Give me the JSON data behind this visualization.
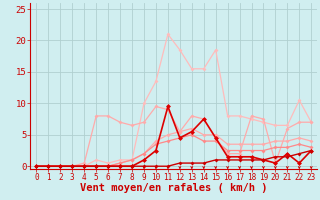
{
  "x": [
    0,
    1,
    2,
    3,
    4,
    5,
    6,
    7,
    8,
    9,
    10,
    11,
    12,
    13,
    14,
    15,
    16,
    17,
    18,
    19,
    20,
    21,
    22,
    23
  ],
  "bg_color": "#d0eef0",
  "grid_color": "#b0d0d0",
  "line_lightest": {
    "y": [
      0,
      0,
      0,
      0,
      0,
      1,
      0.5,
      1,
      1,
      10,
      13.5,
      21,
      18.5,
      15.5,
      15.5,
      18.5,
      8,
      8,
      7.5,
      7,
      6.5,
      6.5,
      10.5,
      7
    ],
    "color": "#ffbbbb",
    "lw": 0.9,
    "marker": "D",
    "ms": 2.0
  },
  "line_light": {
    "y": [
      0,
      0,
      0,
      0,
      0.5,
      8,
      8,
      7,
      6.5,
      7,
      9.5,
      9,
      5.5,
      8,
      7.5,
      4.5,
      2,
      2,
      8,
      7.5,
      0.5,
      6,
      7,
      7
    ],
    "color": "#ffaaaa",
    "lw": 0.9,
    "marker": "D",
    "ms": 2.0
  },
  "line_diag1": {
    "y": [
      0,
      0,
      0,
      0,
      0,
      0,
      0,
      0.5,
      1,
      2,
      3.5,
      4,
      4.5,
      5,
      4,
      4,
      2.5,
      2.5,
      2.5,
      2.5,
      3,
      3,
      3.5,
      3
    ],
    "color": "#ff8888",
    "lw": 0.9,
    "marker": "D",
    "ms": 2.0
  },
  "line_diag2": {
    "y": [
      0,
      0,
      0,
      0,
      0,
      0,
      0,
      0.5,
      1,
      2,
      4,
      5,
      5.5,
      6,
      5,
      5,
      3.5,
      3.5,
      3.5,
      3.5,
      4,
      4,
      4.5,
      4
    ],
    "color": "#ffaaaa",
    "lw": 0.9,
    "marker": "D",
    "ms": 2.0
  },
  "line_dark": {
    "y": [
      0,
      0,
      0,
      0,
      0,
      0,
      0,
      0,
      0,
      1,
      2.5,
      9.5,
      4.5,
      5.5,
      7.5,
      4.5,
      1.5,
      1.5,
      1.5,
      1,
      0.5,
      2,
      0.5,
      2.5
    ],
    "color": "#dd0000",
    "lw": 1.2,
    "marker": "D",
    "ms": 2.5
  },
  "line_base": {
    "y": [
      0,
      0,
      0,
      0,
      0,
      0,
      0,
      0,
      0,
      0,
      0,
      0,
      0.5,
      0.5,
      0.5,
      1,
      1,
      1,
      1,
      1,
      1.5,
      1.5,
      2,
      2.5
    ],
    "color": "#cc0000",
    "lw": 1.0,
    "marker": "D",
    "ms": 2.0
  },
  "xlabel": "Vent moyen/en rafales ( km/h )",
  "xlim": [
    -0.5,
    23.5
  ],
  "ylim": [
    -0.5,
    26
  ],
  "yticks": [
    0,
    5,
    10,
    15,
    20,
    25
  ],
  "xticks": [
    0,
    1,
    2,
    3,
    4,
    5,
    6,
    7,
    8,
    9,
    10,
    11,
    12,
    13,
    14,
    15,
    16,
    17,
    18,
    19,
    20,
    21,
    22,
    23
  ],
  "arrow_color": "#cc0000",
  "line_bottom_color": "#cc0000",
  "xlabel_color": "#cc0000",
  "xlabel_fontsize": 7.5,
  "tick_color": "#cc0000",
  "tick_fontsize": 5.5,
  "ytick_color": "#cc0000",
  "ytick_fontsize": 6.5
}
